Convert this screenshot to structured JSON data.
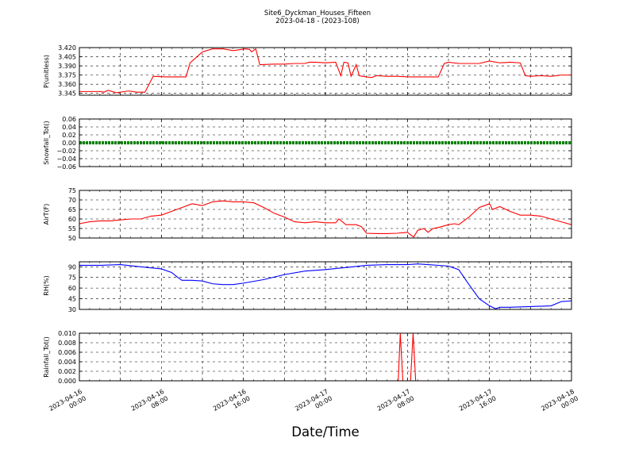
{
  "figure": {
    "title": "Site6_Dyckman_Houses_Fifteen",
    "subtitle": "2023-04-18 - (2023-108)",
    "xlabel": "Date/Time"
  },
  "chart_data": [
    {
      "type": "line",
      "ylabel": "P(unitless)",
      "color": "#ff0000",
      "ylim": [
        3.342,
        3.42
      ],
      "yticks": [
        "3.345",
        "3.360",
        "3.375",
        "3.390",
        "3.405",
        "3.420"
      ],
      "xlim": [
        0,
        48
      ],
      "grid": true,
      "x": [
        0,
        1,
        2,
        2.4,
        2.8,
        3.6,
        4.8,
        5.6,
        6.4,
        7.2,
        8.4,
        9.6,
        10.4,
        10.8,
        12,
        13,
        14,
        15,
        16.2,
        16.6,
        16.8,
        17.2,
        17.6,
        19,
        20,
        21,
        22,
        22.4,
        23,
        24,
        25,
        25.5,
        25.8,
        26.2,
        26.5,
        27,
        27.3,
        27.6,
        28,
        28.5,
        29,
        30,
        31,
        32,
        33,
        34,
        35,
        35.6,
        36,
        37,
        38,
        39,
        40,
        41,
        42,
        43,
        43.5,
        44,
        45,
        46,
        47,
        48
      ],
      "y": [
        3.348,
        3.348,
        3.348,
        3.347,
        3.35,
        3.346,
        3.349,
        3.347,
        3.347,
        3.373,
        3.372,
        3.372,
        3.372,
        3.395,
        3.413,
        3.418,
        3.418,
        3.415,
        3.418,
        3.417,
        3.413,
        3.418,
        3.392,
        3.393,
        3.393,
        3.394,
        3.394,
        3.396,
        3.396,
        3.395,
        3.396,
        3.374,
        3.396,
        3.395,
        3.373,
        3.392,
        3.374,
        3.373,
        3.372,
        3.371,
        3.374,
        3.373,
        3.373,
        3.372,
        3.372,
        3.372,
        3.372,
        3.394,
        3.396,
        3.394,
        3.394,
        3.394,
        3.398,
        3.395,
        3.396,
        3.395,
        3.374,
        3.373,
        3.374,
        3.373,
        3.375,
        3.375
      ]
    },
    {
      "type": "line",
      "ylabel": "Snowfall_Tot()",
      "color": "#008000",
      "ylim": [
        -0.06,
        0.06
      ],
      "yticks": [
        "−0.06",
        "−0.04",
        "−0.02",
        "0.00",
        "0.02",
        "0.04",
        "0.06"
      ],
      "xlim": [
        0,
        48
      ],
      "grid": true,
      "x": [
        0,
        48
      ],
      "y": [
        0,
        0
      ]
    },
    {
      "type": "line",
      "ylabel": "AirT(F)",
      "color": "#ff0000",
      "ylim": [
        50,
        75
      ],
      "yticks": [
        "50",
        "55",
        "60",
        "65",
        "70",
        "75"
      ],
      "xlim": [
        0,
        48
      ],
      "grid": true,
      "x": [
        0,
        1,
        2,
        3,
        4,
        5,
        6,
        7,
        8,
        9,
        10,
        11,
        12,
        13,
        14,
        15,
        16,
        17,
        18,
        19,
        20,
        21,
        22,
        23,
        24,
        25,
        25.3,
        26,
        27,
        27.5,
        28,
        29,
        30,
        31,
        32,
        32.6,
        33,
        33.6,
        34,
        34.5,
        35,
        36,
        36.6,
        37,
        38,
        39,
        39.5,
        40,
        40.3,
        41,
        42,
        43,
        44,
        45,
        46,
        47,
        48
      ],
      "y": [
        57.5,
        58.5,
        59,
        59,
        59.5,
        60,
        60,
        61.5,
        62,
        64,
        66,
        68,
        67,
        69,
        69.5,
        69,
        69,
        68.5,
        66,
        63,
        61,
        58.5,
        58,
        58.5,
        58,
        58,
        60,
        57,
        57,
        56,
        52.5,
        52.3,
        52.3,
        52.5,
        53,
        50.5,
        54,
        55,
        53,
        55,
        55.5,
        57,
        57.5,
        57,
        61,
        66,
        67,
        68,
        65,
        66.5,
        64,
        62,
        62,
        61.5,
        60,
        58.5,
        57
      ]
    },
    {
      "type": "line",
      "ylabel": "RH(%)",
      "color": "#0000ff",
      "ylim": [
        30,
        97
      ],
      "yticks": [
        "30",
        "45",
        "60",
        "75",
        "90"
      ],
      "xlim": [
        0,
        48
      ],
      "grid": true,
      "x": [
        0,
        2,
        4,
        6,
        8,
        9,
        9.6,
        10,
        11,
        12,
        13,
        14,
        15,
        16,
        18,
        20,
        22,
        24,
        26,
        28,
        30,
        32,
        33,
        34,
        36,
        37,
        38,
        39,
        40,
        40.6,
        41,
        42,
        44,
        46,
        47,
        48
      ],
      "y": [
        92,
        92,
        93,
        90,
        87,
        82,
        75,
        71,
        71,
        70,
        66,
        65,
        65,
        67,
        72,
        79,
        84,
        86,
        89,
        92,
        93,
        93,
        94,
        93,
        91,
        86,
        65,
        45,
        35,
        31,
        33,
        33,
        34,
        35,
        41,
        42
      ]
    },
    {
      "type": "line",
      "ylabel": "Rainfall_Tot()",
      "color": "#ff0000",
      "ylim": [
        0,
        0.01
      ],
      "yticks": [
        "0.000",
        "0.002",
        "0.004",
        "0.006",
        "0.008",
        "0.010"
      ],
      "xlim": [
        0,
        48
      ],
      "grid": true,
      "x": [
        0,
        31.1,
        31.3,
        31.55,
        32.3,
        32.55,
        32.8,
        48
      ],
      "y": [
        0,
        0,
        0.01,
        0,
        0,
        0.01,
        0,
        0
      ]
    }
  ],
  "xticks": [
    {
      "x": 0,
      "line1": "2023-04-16",
      "line2": "00:00"
    },
    {
      "x": 8,
      "line1": "2023-04-16",
      "line2": "08:00"
    },
    {
      "x": 16,
      "line1": "2023-04-16",
      "line2": "16:00"
    },
    {
      "x": 24,
      "line1": "2023-04-17",
      "line2": "00:00"
    },
    {
      "x": 32,
      "line1": "2023-04-17",
      "line2": "08:00"
    },
    {
      "x": 40,
      "line1": "2023-04-17",
      "line2": "16:00"
    },
    {
      "x": 48,
      "line1": "2023-04-18",
      "line2": "00:00"
    }
  ]
}
